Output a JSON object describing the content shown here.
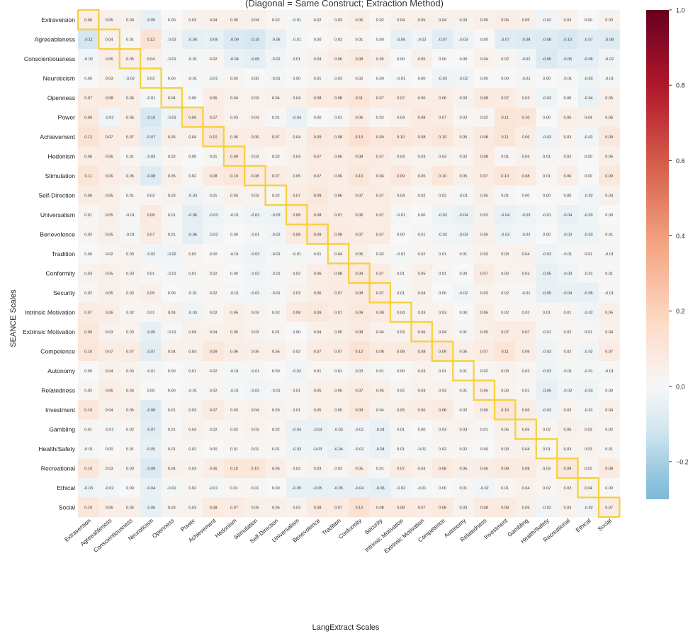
{
  "figure": {
    "title": "(Diagonal = Same Construct; Extraction Method)",
    "xlabel": "LangExtract Scales",
    "ylabel": "SEANCE Scales"
  },
  "chart_data": {
    "type": "heatmap",
    "title": "(Diagonal = Same Construct; Extraction Method)",
    "xlabel": "LangExtract Scales",
    "ylabel": "SEANCE Scales",
    "x_categories": [
      "Extraversion",
      "Agreeableness",
      "Conscientiousness",
      "Neuroticism",
      "Openness",
      "Power",
      "Achievement",
      "Hedonism",
      "Stimulation",
      "Self-Direction",
      "Universalism",
      "Benevolence",
      "Tradition",
      "Conformity",
      "Security",
      "Intrinsic Motivation",
      "Extrinsic Motivation",
      "Competence",
      "Autonomy",
      "Relatedness",
      "Investment",
      "Gambling",
      "Health/Safety",
      "Recreational",
      "Ethical",
      "Social"
    ],
    "y_categories": [
      "Extraversion",
      "Agreeableness",
      "Conscientiousness",
      "Neuroticism",
      "Openness",
      "Power",
      "Achievement",
      "Hedonism",
      "Stimulation",
      "Self-Direction",
      "Universalism",
      "Benevolence",
      "Tradition",
      "Conformity",
      "Security",
      "Intrinsic Motivation",
      "Extrinsic Motivation",
      "Competence",
      "Autonomy",
      "Relatedness",
      "Investment",
      "Gambling",
      "Health/Safety",
      "Recreational",
      "Ethical",
      "Social"
    ],
    "values": [
      [
        0.06,
        0.05,
        0.04,
        -0.05,
        0.0,
        0.03,
        0.04,
        0.05,
        0.04,
        0.02,
        -0.01,
        0.02,
        0.03,
        0.06,
        0.02,
        0.04,
        0.05,
        0.04,
        0.03,
        0.05,
        0.06,
        0.05,
        -0.02,
        0.03,
        -0.0,
        0.03
      ],
      [
        -0.11,
        0.04,
        0.01,
        0.12,
        -0.02,
        -0.06,
        -0.05,
        -0.09,
        -0.1,
        -0.05,
        -0.01,
        0.0,
        0.02,
        0.01,
        -0.0,
        -0.05,
        -0.02,
        -0.07,
        -0.03,
        0.0,
        -0.07,
        -0.08,
        -0.08,
        -0.1,
        -0.07,
        -0.08
      ],
      [
        -0.02,
        0.06,
        0.05,
        0.04,
        -0.01,
        -0.01,
        0.02,
        -0.04,
        -0.06,
        -0.02,
        0.01,
        0.04,
        0.06,
        0.08,
        0.05,
        0.0,
        0.05,
        0.0,
        -0.0,
        0.04,
        0.02,
        -0.02,
        -0.09,
        -0.06,
        -0.06,
        -0.02
      ],
      [
        0.0,
        0.03,
        -0.02,
        0.02,
        0.0,
        -0.01,
        -0.01,
        0.02,
        -0.0,
        -0.01,
        -0.0,
        0.01,
        0.02,
        0.02,
        -0.0,
        -0.01,
        -0.0,
        -0.03,
        -0.02,
        0.0,
        -0.0,
        -0.01,
        -0.0,
        -0.01,
        -0.03,
        -0.01
      ],
      [
        0.07,
        0.08,
        0.06,
        -0.01,
        0.04,
        0.0,
        0.06,
        0.04,
        0.03,
        0.04,
        0.04,
        0.08,
        0.08,
        0.11,
        0.07,
        0.07,
        0.06,
        0.06,
        0.03,
        0.08,
        0.07,
        0.03,
        -0.03,
        0.0,
        -0.04,
        0.05
      ],
      [
        0.09,
        -0.02,
        0.05,
        -0.1,
        -0.03,
        0.09,
        0.07,
        0.03,
        0.04,
        0.01,
        -0.04,
        0.0,
        0.01,
        0.06,
        0.02,
        0.04,
        0.08,
        0.07,
        0.02,
        0.02,
        0.11,
        0.1,
        0.0,
        0.05,
        0.04,
        0.05
      ],
      [
        0.12,
        0.07,
        0.07,
        -0.07,
        0.05,
        0.04,
        0.1,
        0.06,
        0.06,
        0.07,
        0.04,
        0.09,
        0.08,
        0.13,
        0.09,
        0.1,
        0.08,
        0.1,
        0.05,
        0.08,
        0.11,
        0.06,
        -0.03,
        0.03,
        -0.02,
        0.09
      ],
      [
        0.06,
        0.06,
        0.01,
        -0.03,
        0.02,
        -0.0,
        0.01,
        0.09,
        0.03,
        0.02,
        0.04,
        0.07,
        0.06,
        0.08,
        0.07,
        0.04,
        0.03,
        0.03,
        0.02,
        0.08,
        0.01,
        0.04,
        0.01,
        0.02,
        -0.0,
        0.05
      ],
      [
        0.11,
        0.06,
        0.05,
        -0.08,
        0.05,
        0.02,
        0.08,
        0.1,
        0.08,
        0.07,
        0.05,
        0.07,
        0.06,
        0.1,
        0.06,
        0.09,
        0.05,
        0.1,
        0.05,
        0.07,
        0.1,
        0.08,
        0.01,
        0.06,
        -0.0,
        0.09
      ],
      [
        0.06,
        0.05,
        0.01,
        0.02,
        0.03,
        -0.03,
        0.01,
        0.04,
        0.03,
        0.02,
        0.07,
        0.09,
        0.06,
        0.07,
        0.07,
        0.04,
        0.02,
        0.02,
        -0.01,
        0.05,
        0.01,
        -0.0,
        0.0,
        0.0,
        -0.02,
        0.04
      ],
      [
        0.01,
        0.05,
        -0.01,
        0.08,
        0.01,
        -0.06,
        -0.03,
        -0.01,
        -0.03,
        -0.03,
        0.08,
        0.08,
        0.07,
        0.06,
        0.07,
        -0.01,
        0.0,
        -0.03,
        -0.04,
        0.03,
        -0.04,
        -0.03,
        -0.01,
        -0.04,
        -0.03,
        -0.0
      ],
      [
        0.02,
        0.05,
        -0.01,
        0.07,
        0.01,
        -0.06,
        -0.02,
        0.0,
        -0.01,
        -0.02,
        0.08,
        0.09,
        0.08,
        0.07,
        0.07,
        0.0,
        0.01,
        -0.02,
        -0.03,
        0.05,
        -0.03,
        -0.02,
        -0.0,
        -0.03,
        -0.03,
        0.01
      ],
      [
        0.0,
        0.02,
        0.03,
        -0.02,
        -0.02,
        0.02,
        0.0,
        -0.01,
        -0.03,
        -0.01,
        -0.01,
        0.01,
        0.04,
        0.05,
        0.02,
        -0.01,
        0.02,
        0.01,
        0.01,
        0.03,
        0.03,
        0.04,
        -0.03,
        -0.01,
        0.01,
        -0.01
      ],
      [
        0.03,
        0.05,
        0.03,
        0.01,
        -0.01,
        0.01,
        0.02,
        0.0,
        -0.02,
        -0.01,
        0.02,
        0.06,
        0.08,
        0.09,
        0.07,
        0.01,
        0.05,
        0.01,
        0.0,
        0.07,
        0.03,
        0.03,
        -0.05,
        -0.03,
        -0.01,
        0.01
      ],
      [
        0.02,
        0.05,
        0.03,
        0.05,
        0.0,
        -0.01,
        0.02,
        -0.01,
        -0.02,
        -0.01,
        0.03,
        0.06,
        0.07,
        0.08,
        0.07,
        0.01,
        0.04,
        -0.0,
        -0.02,
        0.03,
        0.02,
        -0.01,
        -0.05,
        -0.04,
        -0.05,
        -0.01
      ],
      [
        0.07,
        0.06,
        0.02,
        0.01,
        0.04,
        -0.03,
        0.02,
        0.05,
        0.03,
        0.02,
        0.08,
        0.09,
        0.07,
        0.09,
        0.08,
        0.04,
        0.03,
        0.03,
        0.0,
        0.06,
        0.02,
        0.02,
        0.01,
        0.01,
        -0.02,
        0.05
      ],
      [
        0.09,
        0.03,
        0.03,
        -0.05,
        -0.01,
        0.04,
        0.04,
        0.05,
        0.03,
        0.01,
        -0.0,
        0.04,
        0.05,
        0.08,
        0.04,
        0.03,
        0.06,
        0.04,
        0.01,
        0.05,
        0.07,
        0.07,
        -0.01,
        0.02,
        0.01,
        0.04
      ],
      [
        0.1,
        0.07,
        0.07,
        -0.07,
        0.04,
        0.04,
        0.09,
        0.06,
        0.05,
        0.05,
        0.02,
        0.07,
        0.07,
        0.12,
        0.08,
        0.08,
        0.08,
        0.09,
        0.05,
        0.07,
        0.11,
        0.06,
        -0.03,
        0.02,
        -0.02,
        0.07
      ],
      [
        -0.0,
        0.04,
        0.03,
        -0.01,
        -0.0,
        0.01,
        0.02,
        -0.01,
        -0.01,
        -0.0,
        -0.02,
        0.01,
        0.01,
        0.03,
        0.01,
        0.0,
        0.03,
        0.01,
        0.01,
        0.02,
        0.03,
        0.02,
        -0.03,
        -0.01,
        -0.01,
        -0.01
      ],
      [
        0.02,
        0.06,
        0.04,
        0.0,
        -0.0,
        -0.01,
        0.02,
        -0.01,
        -0.02,
        -0.01,
        0.01,
        0.05,
        0.05,
        0.07,
        0.05,
        0.02,
        0.04,
        0.03,
        0.01,
        0.05,
        0.03,
        0.01,
        -0.05,
        -0.02,
        -0.03,
        0.0
      ],
      [
        0.1,
        0.04,
        0.05,
        -0.08,
        0.01,
        0.03,
        0.07,
        0.03,
        0.04,
        0.03,
        0.01,
        0.05,
        0.05,
        0.09,
        0.04,
        0.05,
        0.06,
        0.08,
        0.02,
        0.06,
        0.1,
        0.06,
        -0.03,
        0.03,
        -0.01,
        0.04
      ],
      [
        0.01,
        -0.01,
        0.02,
        -0.07,
        0.01,
        0.04,
        0.02,
        0.02,
        0.03,
        0.02,
        -0.04,
        -0.04,
        -0.03,
        -0.02,
        -0.04,
        0.01,
        0.0,
        0.03,
        0.03,
        0.01,
        0.05,
        0.05,
        0.02,
        0.05,
        0.03,
        0.02
      ],
      [
        -0.01,
        -0.0,
        0.01,
        -0.05,
        0.01,
        0.02,
        0.0,
        0.01,
        0.01,
        0.01,
        -0.03,
        -0.03,
        -0.04,
        -0.02,
        -0.04,
        0.01,
        -0.01,
        0.02,
        0.02,
        -0.0,
        0.03,
        0.04,
        0.01,
        0.03,
        0.03,
        0.01
      ],
      [
        0.1,
        0.03,
        0.03,
        -0.09,
        0.04,
        0.03,
        0.06,
        0.1,
        0.1,
        0.06,
        0.02,
        0.03,
        0.02,
        0.05,
        0.01,
        0.07,
        0.04,
        0.08,
        0.05,
        0.06,
        0.08,
        0.08,
        0.03,
        0.09,
        0.02,
        0.08
      ],
      [
        -0.03,
        -0.02,
        -0.0,
        -0.04,
        -0.01,
        0.02,
        -0.01,
        0.01,
        0.01,
        -0.0,
        -0.05,
        -0.05,
        -0.05,
        -0.04,
        -0.06,
        -0.02,
        -0.01,
        0.0,
        0.01,
        -0.02,
        0.01,
        0.04,
        0.02,
        0.03,
        0.04,
        -0.0
      ],
      [
        0.1,
        0.06,
        0.05,
        -0.05,
        0.03,
        0.03,
        0.08,
        0.07,
        0.05,
        0.05,
        0.03,
        0.08,
        0.07,
        0.12,
        0.08,
        0.08,
        0.07,
        0.08,
        0.03,
        0.08,
        0.08,
        0.05,
        -0.02,
        0.03,
        -0.02,
        0.07
      ]
    ],
    "color_scale": {
      "name": "RdBu_r",
      "vmin": -0.3,
      "vmax": 1.0,
      "center": 0.0,
      "low_color": "#aacde3",
      "mid_color": "#f7f7f7",
      "high_color": "#67001f",
      "ticks": [
        -0.2,
        0.0,
        0.2,
        0.4,
        0.6,
        0.8,
        1.0
      ],
      "tick_labels": [
        "−0.2",
        "0.0",
        "0.2",
        "0.4",
        "0.6",
        "0.8",
        "1.0"
      ]
    },
    "diagonal_highlight_color": "#f5d03a",
    "grid": false
  }
}
